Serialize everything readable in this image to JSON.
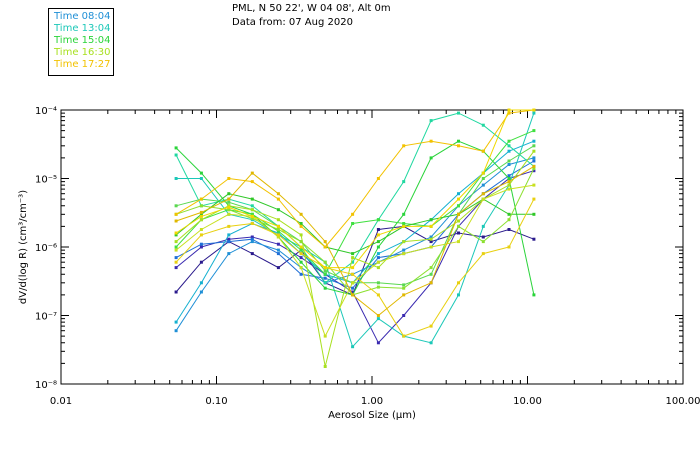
{
  "header": {
    "title": "PML, N 50 22', W 04 08', Alt 0m",
    "subtitle": "Data from: 07 Aug 2020"
  },
  "legend": [
    {
      "label": "Time 08:04",
      "color": "#1f8fd6"
    },
    {
      "label": "Time 13:04",
      "color": "#1cc8b8"
    },
    {
      "label": "Time 15:04",
      "color": "#2ad43a"
    },
    {
      "label": "Time 16:30",
      "color": "#a8e020"
    },
    {
      "label": "Time 17:27",
      "color": "#f2c200"
    }
  ],
  "chart_data": {
    "type": "line",
    "title": "PML, N 50 22', W 04 08', Alt 0m",
    "xlabel": "Aerosol Size (μm)",
    "ylabel": "dV/d(log R) (cm³/cm⁻³)",
    "xscale": "log",
    "yscale": "log",
    "xlim": [
      0.01,
      100
    ],
    "ylim": [
      1e-08,
      0.0001
    ],
    "x_tick_labels": [
      "0.01",
      "0.10",
      "1.00",
      "10.00",
      "100.00"
    ],
    "y_tick_labels": [
      "10⁻⁸",
      "10⁻⁷",
      "10⁻⁶",
      "10⁻⁵",
      "10⁻⁴"
    ],
    "x": [
      0.055,
      0.08,
      0.12,
      0.17,
      0.25,
      0.35,
      0.5,
      0.75,
      1.1,
      1.6,
      2.4,
      3.6,
      5.2,
      7.6,
      11.0
    ],
    "series": [
      {
        "name": "08:04",
        "color": "#2a1a8c",
        "values": [
          2.2e-07,
          6e-07,
          1.2e-06,
          8e-07,
          5e-07,
          9e-07,
          3e-07,
          2e-07,
          1.8e-06,
          2e-06,
          1.2e-06,
          1.6e-06,
          1.4e-06,
          1.8e-06,
          1.3e-06
        ]
      },
      {
        "name": "08:04",
        "color": "#3a2ab0",
        "values": [
          5e-07,
          1e-06,
          1.3e-06,
          1.4e-06,
          1.1e-06,
          7e-07,
          4e-07,
          2.2e-07,
          4e-08,
          1e-07,
          3e-07,
          2e-06,
          5e-06,
          1e-05,
          1.3e-05
        ]
      },
      {
        "name": "08:04",
        "color": "#1f6fd6",
        "values": [
          7e-07,
          1.1e-06,
          1.2e-06,
          1.3e-06,
          8e-07,
          4e-07,
          3.5e-07,
          2.5e-07,
          7e-07,
          8e-07,
          1e-06,
          3e-06,
          6e-06,
          1.1e-05,
          1.8e-05
        ]
      },
      {
        "name": "13:04",
        "color": "#1f8fd6",
        "values": [
          6e-08,
          2.2e-07,
          8e-07,
          1.2e-06,
          9e-07,
          5e-07,
          3e-07,
          4e-07,
          6e-07,
          9e-07,
          1.4e-06,
          4e-06,
          8e-06,
          1.6e-05,
          2e-05
        ]
      },
      {
        "name": "13:04",
        "color": "#14b0d0",
        "values": [
          8e-08,
          3e-07,
          1.5e-06,
          2.2e-06,
          1.6e-06,
          8e-07,
          4e-07,
          3e-07,
          8e-07,
          1.2e-06,
          2.5e-06,
          6e-06,
          1.2e-05,
          2.5e-05,
          3.5e-05
        ]
      },
      {
        "name": "13:04",
        "color": "#1cc8b8",
        "values": [
          1e-05,
          1e-05,
          3e-06,
          2.5e-06,
          1.5e-06,
          1e-06,
          6e-07,
          3.5e-08,
          9e-08,
          5e-08,
          4e-08,
          2e-07,
          2e-06,
          8e-06,
          9e-05
        ]
      },
      {
        "name": "13:04",
        "color": "#20d8a0",
        "values": [
          2.2e-05,
          4e-06,
          5e-06,
          4e-06,
          2e-06,
          1e-06,
          3e-07,
          6e-07,
          2.5e-06,
          9e-06,
          7e-05,
          9e-05,
          6e-05,
          3e-05,
          1.5e-05
        ]
      },
      {
        "name": "15:04",
        "color": "#2ad43a",
        "values": [
          2.8e-05,
          1.2e-05,
          4e-06,
          3e-06,
          1.4e-06,
          6e-07,
          2.5e-07,
          2e-07,
          1e-06,
          3e-06,
          2e-05,
          3.5e-05,
          2.5e-05,
          1e-05,
          2e-07
        ]
      },
      {
        "name": "15:04",
        "color": "#40e040",
        "values": [
          1e-06,
          2.5e-06,
          3.5e-06,
          3e-06,
          1.7e-06,
          9e-07,
          4e-07,
          2.2e-06,
          2.5e-06,
          2.2e-06,
          2e-06,
          4e-06,
          1.2e-05,
          3.5e-05,
          5e-05
        ]
      },
      {
        "name": "15:04",
        "color": "#5ad850",
        "values": [
          4e-06,
          5e-06,
          4.5e-06,
          3.5e-06,
          2e-06,
          1.2e-06,
          4.5e-07,
          3e-07,
          3e-07,
          2.8e-07,
          4e-07,
          3e-06,
          1e-05,
          1.8e-05,
          3e-05
        ]
      },
      {
        "name": "15:04",
        "color": "#30c828",
        "values": [
          1.5e-06,
          3e-06,
          6e-06,
          5e-06,
          3.5e-06,
          2.2e-06,
          1e-06,
          8e-07,
          1.2e-06,
          2e-06,
          2.5e-06,
          3e-06,
          5e-06,
          3e-06,
          3e-06
        ]
      },
      {
        "name": "16:30",
        "color": "#a8e020",
        "values": [
          1.2e-06,
          2.5e-06,
          4e-06,
          3.5e-06,
          2.5e-06,
          1.5e-06,
          1.8e-08,
          7e-07,
          5e-07,
          1.2e-06,
          1.3e-06,
          2.4e-06,
          5e-06,
          8e-06,
          2.5e-05
        ]
      },
      {
        "name": "16:30",
        "color": "#8ce030",
        "values": [
          3e-06,
          4e-06,
          3.5e-06,
          2.6e-06,
          1.8e-06,
          1.2e-06,
          6e-07,
          2e-07,
          2.6e-07,
          2.5e-07,
          5e-07,
          2e-06,
          1.2e-06,
          2.5e-06,
          1.4e-05
        ]
      },
      {
        "name": "16:30",
        "color": "#c8e020",
        "values": [
          9e-07,
          1.8e-06,
          3e-06,
          2.8e-06,
          1.4e-06,
          5e-07,
          5e-08,
          3e-07,
          6e-07,
          8e-07,
          1e-06,
          1.2e-06,
          5e-06,
          7e-06,
          8e-06
        ]
      },
      {
        "name": "17:27",
        "color": "#f2c200",
        "values": [
          3e-06,
          5e-06,
          1e-05,
          9e-06,
          5e-06,
          2e-06,
          1e-06,
          3e-06,
          1e-05,
          3e-05,
          3.5e-05,
          3e-05,
          2.5e-05,
          9e-05,
          0.0001
        ]
      },
      {
        "name": "17:27",
        "color": "#e8d010",
        "values": [
          6e-07,
          1.5e-06,
          2e-06,
          2.2e-06,
          1.5e-06,
          8e-07,
          5e-07,
          4e-07,
          2e-07,
          5e-08,
          7e-08,
          3e-07,
          8e-07,
          1e-06,
          5e-06
        ]
      },
      {
        "name": "17:27",
        "color": "#f0d800",
        "values": [
          1.6e-06,
          2.8e-06,
          3.8e-06,
          2.8e-06,
          2e-06,
          1e-06,
          5e-07,
          5e-07,
          1.5e-06,
          2e-06,
          2e-06,
          5e-06,
          1.2e-05,
          0.0001,
          0.00012
        ]
      },
      {
        "name": "17:27",
        "color": "#e0b800",
        "values": [
          2.4e-06,
          3.2e-06,
          5e-06,
          1.2e-05,
          6e-06,
          3e-06,
          1.2e-06,
          2e-07,
          1e-07,
          2e-07,
          3e-07,
          3e-06,
          6e-06,
          9e-06,
          1.5e-05
        ]
      }
    ]
  }
}
